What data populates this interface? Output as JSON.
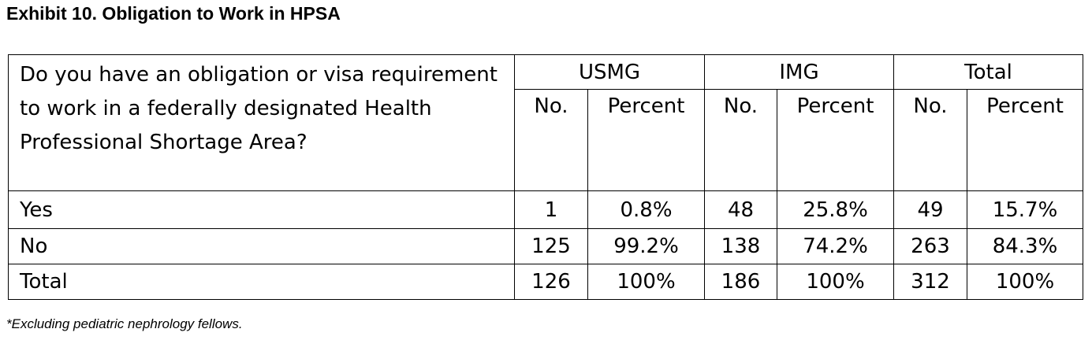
{
  "title": "Exhibit 10. Obligation to Work in HPSA",
  "table": {
    "question": "Do you have an obligation or visa requirement to work in a federally designated Health Professional Shortage Area?",
    "groups": [
      {
        "name": "USMG",
        "columns": [
          "No.",
          "Percent"
        ]
      },
      {
        "name": "IMG",
        "columns": [
          "No.",
          "Percent"
        ]
      },
      {
        "name": "Total",
        "columns": [
          "No.",
          "Percent"
        ]
      }
    ],
    "rows": [
      [
        "Yes",
        "1",
        "0.8%",
        "48",
        "25.8%",
        "49",
        "15.7%"
      ],
      [
        "No",
        "125",
        "99.2%",
        "138",
        "74.2%",
        "263",
        "84.3%"
      ],
      [
        "Total",
        "126",
        "100%",
        "186",
        "100%",
        "312",
        "100%"
      ]
    ]
  },
  "footnote": "*Excluding pediatric nephrology fellows."
}
